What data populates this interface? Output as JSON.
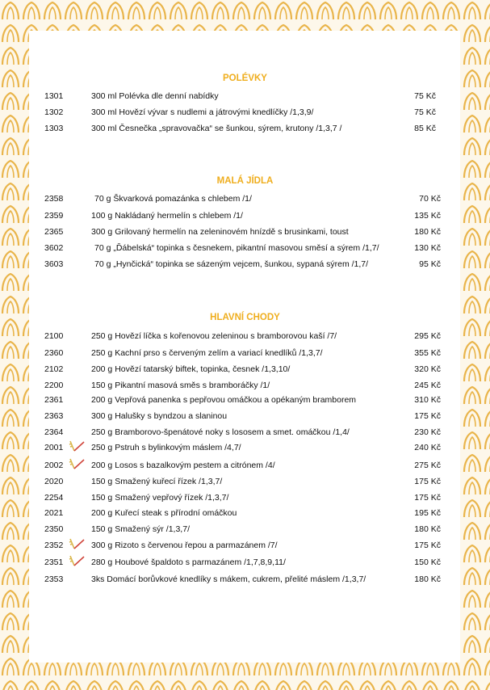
{
  "sections": [
    {
      "title": "POLÉVKY",
      "items": [
        {
          "code": "1301",
          "text": "300 ml Polévka dle denní nabídky",
          "price": "75 Kč"
        },
        {
          "code": "1302",
          "text": "300 ml Hovězí vývar s nudlemi a játrovými knedlíčky /1,3,9/",
          "price": "75 Kč"
        },
        {
          "code": "1303",
          "text": "300 ml Česnečka „spravovačka“ se šunkou, sýrem, krutony /1,3,7 /",
          "price": "85 Kč"
        }
      ]
    },
    {
      "title": "MALÁ JÍDLA",
      "items": [
        {
          "code": "2358",
          "text": "70 g  Škvarková pomazánka s chlebem /1/",
          "price": "70 Kč"
        },
        {
          "code": "2359",
          "text": "100 g Nakládaný hermelín s chlebem /1/",
          "price": "135 Kč"
        },
        {
          "code": "2365",
          "text": "300 g Grilovaný hermelín na zeleninovém hnízdě s brusinkami, toust",
          "price": "180 Kč"
        },
        {
          "code": "3602",
          "text": "70 g „Ďábelská“ topinka s česnekem, pikantní masovou směsí a sýrem /1,7/",
          "price": "130 Kč"
        },
        {
          "code": "3603",
          "text": "70 g „Hynčická“ topinka se sázeným vejcem, šunkou, sypaná sýrem /1,7/",
          "price": "95 Kč"
        }
      ]
    },
    {
      "title": "HLAVNÍ CHODY",
      "items": [
        {
          "code": "2100",
          "text": "250 g Hovězí líčka s kořenovou zeleninou s bramborovou kaší /7/",
          "price": "295 Kč"
        },
        {
          "code": "2360",
          "text": "250 g Kachní prso s červeným zelím a variací knedlíků /1,3,7/",
          "price": "355 Kč"
        },
        {
          "code": "2102",
          "text": "200 g Hovězí tatarský biftek, topinka, česnek /1,3,10/",
          "price": "320 Kč"
        },
        {
          "code": "2200",
          "text": "150 g Pikantní masová směs s bramboráčky /1/",
          "price": "245 Kč"
        },
        {
          "code": "2361",
          "text": "200 g Vepřová panenka s pepřovou omáčkou a opékaným bramborem",
          "price": "310 Kč"
        },
        {
          "code": "2363",
          "text": "300 g Halušky s byndzou a slaninou",
          "price": "175 Kč"
        },
        {
          "code": "2364",
          "text": "250 g Bramborovo-špenátové noky s lososem a smet. omáčkou /1,4/",
          "price": "230 Kč"
        },
        {
          "code": "2001",
          "text": "250 g Pstruh s bylinkovým máslem /4,7/",
          "price": "240 Kč"
        },
        {
          "code": "2002",
          "text": "200 g Losos s bazalkovým pestem a citrónem /4/",
          "price": "275 Kč"
        },
        {
          "code": "2020",
          "text": "150 g Smažený kuřecí řízek /1,3,7/",
          "price": "175 Kč"
        },
        {
          "code": "2254",
          "text": "150 g Smažený vepřový řízek /1,3,7/",
          "price": "175 Kč"
        },
        {
          "code": "2021",
          "text": "200 g Kuřecí steak s přírodní omáčkou",
          "price": "195 Kč"
        },
        {
          "code": "2350",
          "text": "150 g Smažený sýr /1,3,7/",
          "price": "180 Kč"
        },
        {
          "code": "2352",
          "text": "300 g Rizoto s červenou řepou a parmazánem /7/",
          "price": "175 Kč"
        },
        {
          "code": "2351",
          "text": "280 g Houbové špaldoto s parmazánem /1,7,8,9,11/",
          "price": "150 Kč"
        },
        {
          "code": "2353",
          "text": "3ks  Domácí borůvkové knedlíky s mákem, cukrem, přelité máslem /1,3,7/",
          "price": "180 Kč"
        }
      ]
    }
  ]
}
